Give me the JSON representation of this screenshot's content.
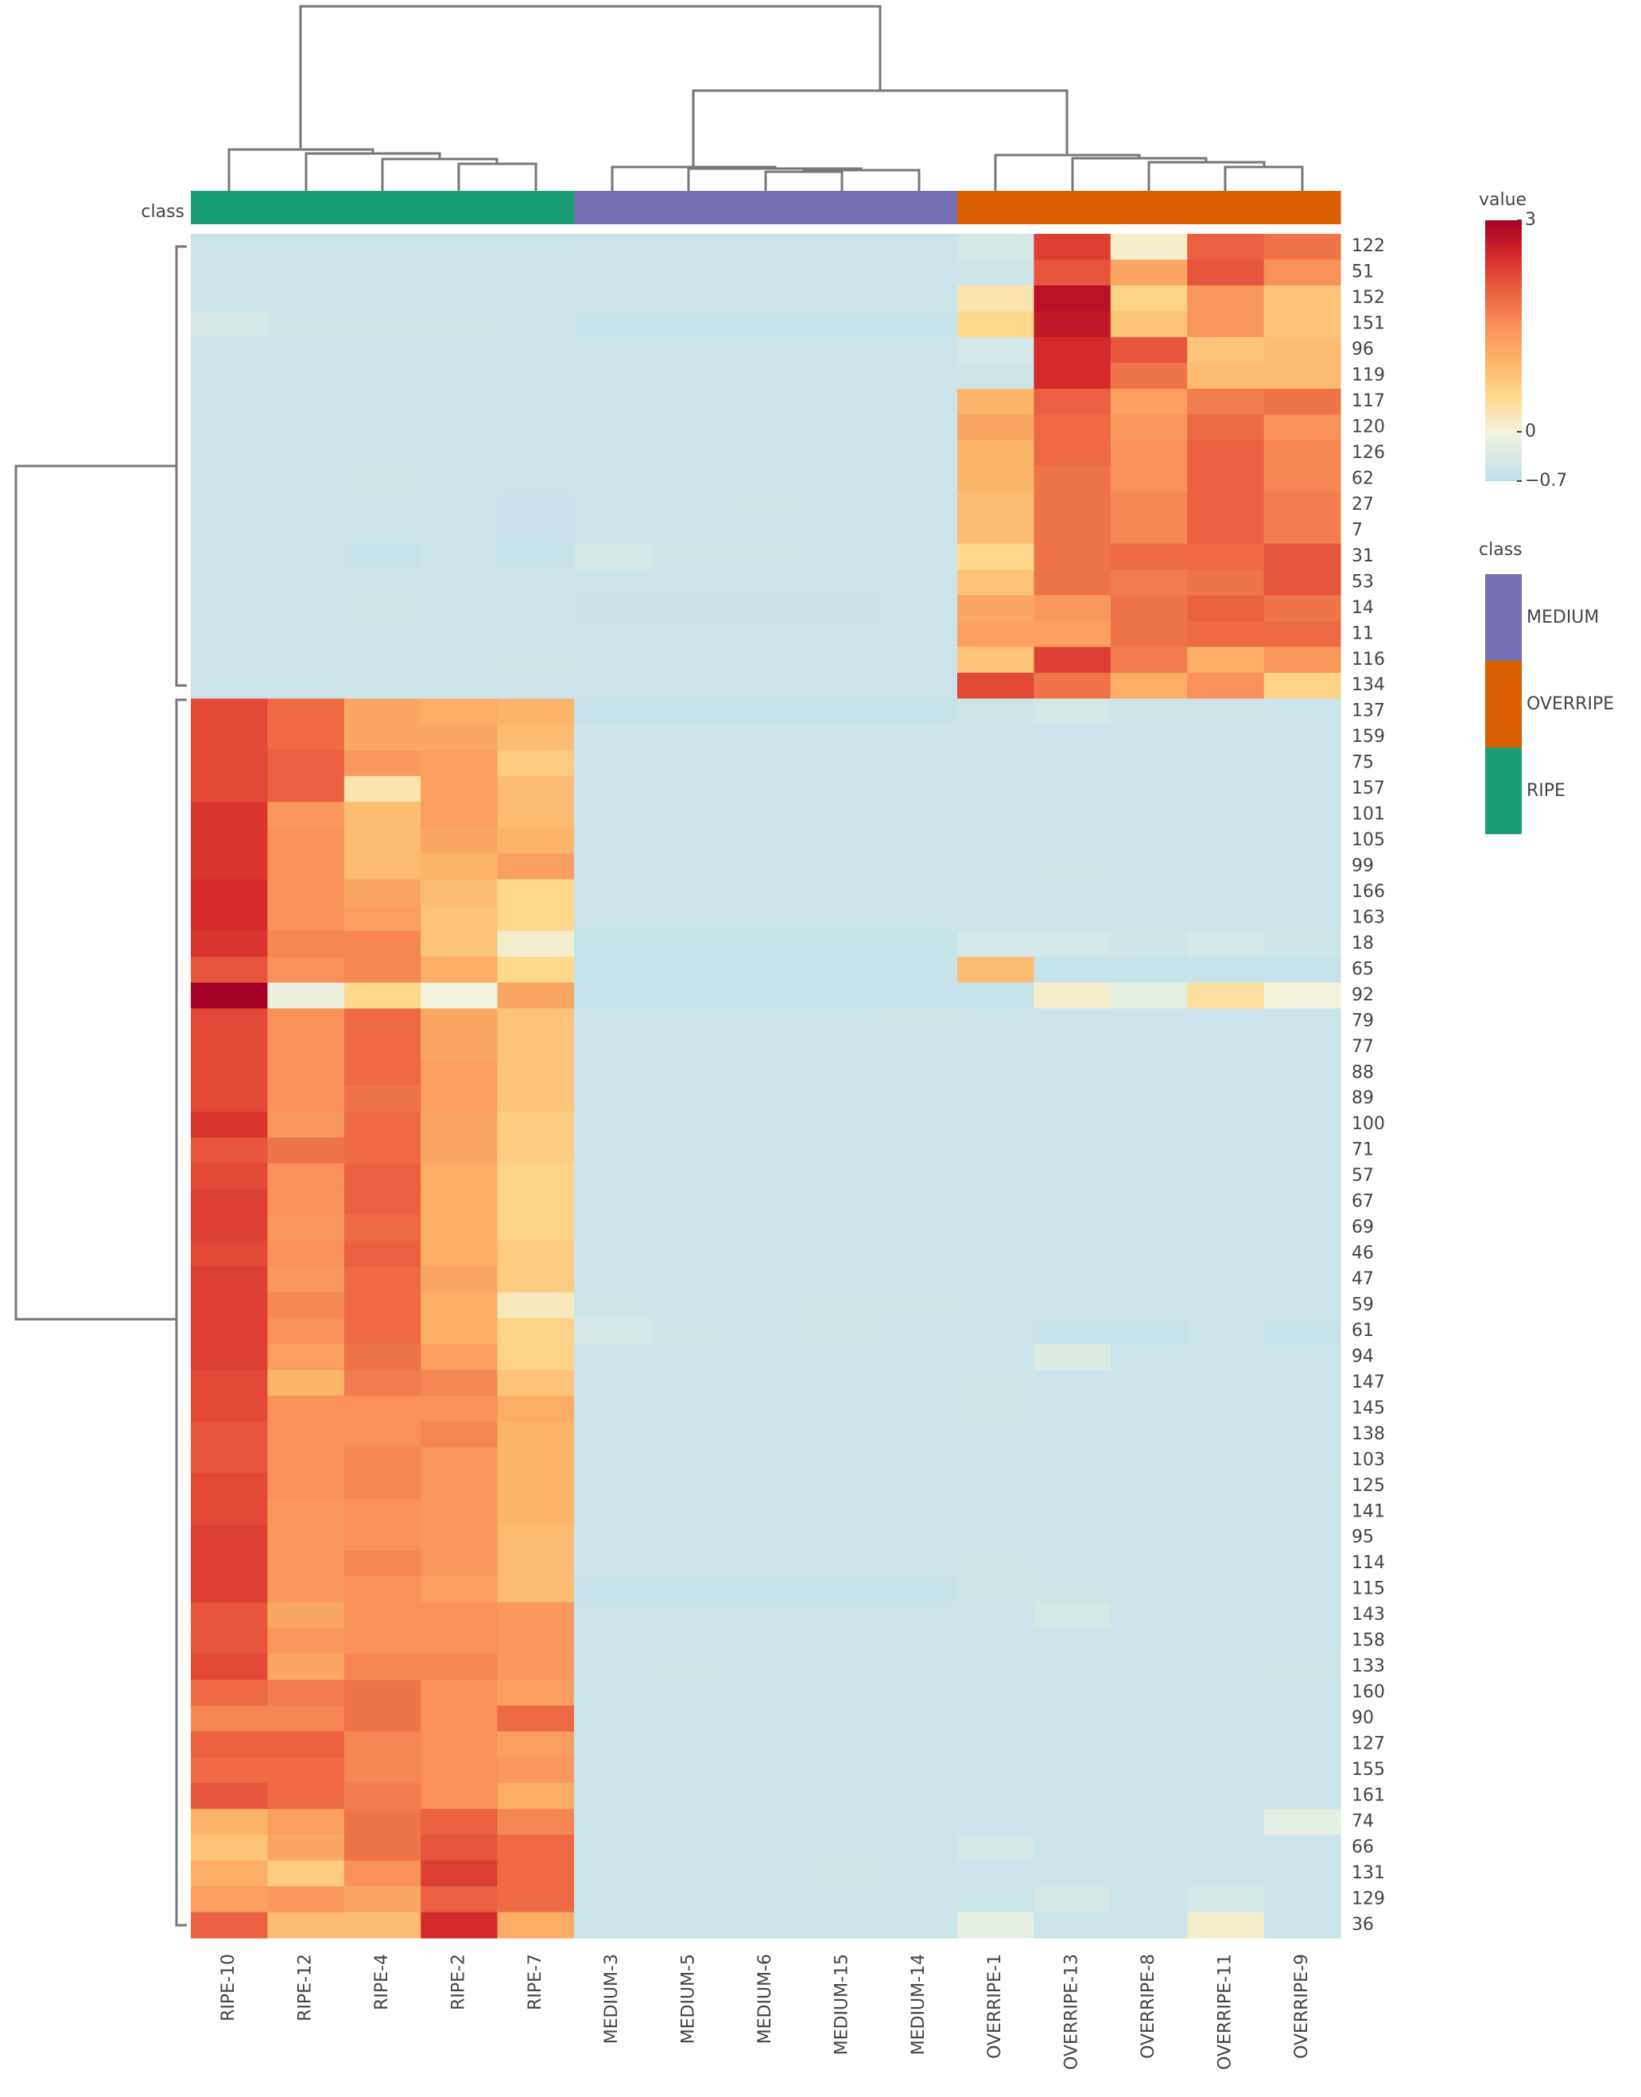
{
  "chart_data": {
    "type": "heatmap",
    "annotation_label": "class",
    "columns": [
      "RIPE-10",
      "RIPE-12",
      "RIPE-4",
      "RIPE-2",
      "RIPE-7",
      "MEDIUM-3",
      "MEDIUM-5",
      "MEDIUM-6",
      "MEDIUM-15",
      "MEDIUM-14",
      "OVERRIPE-1",
      "OVERRIPE-13",
      "OVERRIPE-8",
      "OVERRIPE-11",
      "OVERRIPE-9"
    ],
    "rows": [
      "122",
      "51",
      "152",
      "151",
      "96",
      "119",
      "117",
      "120",
      "126",
      "62",
      "27",
      "7",
      "31",
      "53",
      "14",
      "11",
      "116",
      "134",
      "137",
      "159",
      "75",
      "157",
      "101",
      "105",
      "99",
      "166",
      "163",
      "18",
      "65",
      "92",
      "79",
      "77",
      "88",
      "89",
      "100",
      "71",
      "57",
      "67",
      "69",
      "46",
      "47",
      "59",
      "61",
      "94",
      "147",
      "145",
      "138",
      "103",
      "125",
      "141",
      "95",
      "114",
      "115",
      "143",
      "158",
      "133",
      "160",
      "90",
      "127",
      "155",
      "161",
      "74",
      "66",
      "131",
      "129",
      "36"
    ],
    "values": [
      [
        -0.55,
        -0.55,
        -0.55,
        -0.55,
        -0.55,
        -0.55,
        -0.55,
        -0.55,
        -0.55,
        -0.55,
        -0.45,
        2.3,
        0.1,
        2.0,
        1.8
      ],
      [
        -0.55,
        -0.55,
        -0.55,
        -0.55,
        -0.55,
        -0.55,
        -0.55,
        -0.55,
        -0.55,
        -0.55,
        -0.5,
        2.1,
        1.2,
        2.1,
        1.5
      ],
      [
        -0.55,
        -0.55,
        -0.55,
        -0.55,
        -0.55,
        -0.55,
        -0.55,
        -0.55,
        -0.55,
        -0.55,
        0.3,
        2.8,
        0.6,
        1.4,
        0.8
      ],
      [
        -0.45,
        -0.5,
        -0.5,
        -0.5,
        -0.55,
        -0.6,
        -0.6,
        -0.6,
        -0.6,
        -0.6,
        0.5,
        2.7,
        0.8,
        1.4,
        0.8
      ],
      [
        -0.55,
        -0.55,
        -0.55,
        -0.55,
        -0.55,
        -0.55,
        -0.55,
        -0.55,
        -0.55,
        -0.55,
        -0.45,
        2.5,
        2.1,
        0.8,
        0.9
      ],
      [
        -0.55,
        -0.55,
        -0.55,
        -0.55,
        -0.55,
        -0.55,
        -0.55,
        -0.55,
        -0.55,
        -0.55,
        -0.5,
        2.5,
        1.8,
        0.9,
        0.9
      ],
      [
        -0.55,
        -0.55,
        -0.55,
        -0.55,
        -0.55,
        -0.55,
        -0.55,
        -0.55,
        -0.55,
        -0.55,
        1.0,
        2.0,
        1.3,
        1.7,
        1.8
      ],
      [
        -0.55,
        -0.55,
        -0.55,
        -0.55,
        -0.55,
        -0.55,
        -0.55,
        -0.55,
        -0.55,
        -0.55,
        1.2,
        1.9,
        1.4,
        1.9,
        1.5
      ],
      [
        -0.55,
        -0.55,
        -0.55,
        -0.55,
        -0.55,
        -0.55,
        -0.55,
        -0.55,
        -0.55,
        -0.55,
        1.0,
        1.9,
        1.5,
        2.0,
        1.6
      ],
      [
        -0.55,
        -0.55,
        -0.5,
        -0.55,
        -0.55,
        -0.55,
        -0.55,
        -0.55,
        -0.55,
        -0.55,
        1.0,
        1.8,
        1.5,
        2.0,
        1.6
      ],
      [
        -0.55,
        -0.55,
        -0.55,
        -0.55,
        -0.58,
        -0.55,
        -0.55,
        -0.5,
        -0.55,
        -0.55,
        0.9,
        1.8,
        1.6,
        2.0,
        1.7
      ],
      [
        -0.55,
        -0.55,
        -0.55,
        -0.55,
        -0.58,
        -0.55,
        -0.55,
        -0.55,
        -0.55,
        -0.55,
        0.9,
        1.8,
        1.6,
        2.0,
        1.7
      ],
      [
        -0.55,
        -0.55,
        -0.6,
        -0.55,
        -0.6,
        -0.45,
        -0.5,
        -0.5,
        -0.55,
        -0.55,
        0.5,
        1.8,
        1.9,
        1.9,
        2.1
      ],
      [
        -0.55,
        -0.55,
        -0.55,
        -0.55,
        -0.55,
        -0.55,
        -0.55,
        -0.55,
        -0.55,
        -0.55,
        0.8,
        1.8,
        1.7,
        1.8,
        2.1
      ],
      [
        -0.55,
        -0.55,
        -0.5,
        -0.55,
        -0.55,
        -0.58,
        -0.58,
        -0.58,
        -0.58,
        -0.55,
        1.2,
        1.4,
        1.8,
        2.0,
        1.8
      ],
      [
        -0.55,
        -0.55,
        -0.55,
        -0.55,
        -0.55,
        -0.55,
        -0.55,
        -0.55,
        -0.55,
        -0.55,
        1.3,
        1.3,
        1.8,
        1.9,
        1.9
      ],
      [
        -0.55,
        -0.55,
        -0.55,
        -0.55,
        -0.5,
        -0.55,
        -0.55,
        -0.55,
        -0.55,
        -0.55,
        0.8,
        2.3,
        1.7,
        1.1,
        1.4
      ],
      [
        -0.55,
        -0.55,
        -0.55,
        -0.55,
        -0.55,
        -0.55,
        -0.55,
        -0.55,
        -0.55,
        -0.55,
        2.2,
        1.8,
        1.1,
        1.5,
        0.6
      ],
      [
        2.2,
        1.9,
        1.2,
        1.1,
        1.0,
        -0.6,
        -0.6,
        -0.6,
        -0.6,
        -0.6,
        -0.5,
        -0.45,
        -0.5,
        -0.5,
        -0.55
      ],
      [
        2.2,
        1.9,
        1.2,
        1.2,
        0.9,
        -0.55,
        -0.55,
        -0.55,
        -0.55,
        -0.55,
        -0.55,
        -0.55,
        -0.55,
        -0.55,
        -0.55
      ],
      [
        2.2,
        2.0,
        1.4,
        1.3,
        0.7,
        -0.55,
        -0.55,
        -0.55,
        -0.55,
        -0.55,
        -0.55,
        -0.55,
        -0.55,
        -0.55,
        -0.55
      ],
      [
        2.2,
        2.0,
        0.3,
        1.3,
        0.9,
        -0.55,
        -0.55,
        -0.55,
        -0.55,
        -0.55,
        -0.55,
        -0.55,
        -0.55,
        -0.55,
        -0.55
      ],
      [
        2.4,
        1.4,
        0.9,
        1.3,
        0.9,
        -0.55,
        -0.55,
        -0.55,
        -0.55,
        -0.55,
        -0.55,
        -0.55,
        -0.55,
        -0.55,
        -0.55
      ],
      [
        2.4,
        1.5,
        0.9,
        1.2,
        1.0,
        -0.55,
        -0.55,
        -0.55,
        -0.55,
        -0.55,
        -0.55,
        -0.55,
        -0.55,
        -0.55,
        -0.55
      ],
      [
        2.4,
        1.5,
        0.9,
        1.0,
        1.3,
        -0.55,
        -0.55,
        -0.55,
        -0.55,
        -0.55,
        -0.55,
        -0.5,
        -0.55,
        -0.55,
        -0.55
      ],
      [
        2.5,
        1.5,
        1.2,
        0.9,
        0.5,
        -0.55,
        -0.55,
        -0.55,
        -0.55,
        -0.55,
        -0.55,
        -0.55,
        -0.55,
        -0.55,
        -0.55
      ],
      [
        2.5,
        1.5,
        1.3,
        0.8,
        0.5,
        -0.55,
        -0.55,
        -0.55,
        -0.55,
        -0.55,
        -0.55,
        -0.55,
        -0.55,
        -0.55,
        -0.55
      ],
      [
        2.4,
        1.6,
        1.6,
        0.8,
        0.1,
        -0.6,
        -0.6,
        -0.6,
        -0.6,
        -0.6,
        -0.45,
        -0.45,
        -0.5,
        -0.45,
        -0.5
      ],
      [
        2.1,
        1.5,
        1.6,
        1.1,
        0.5,
        -0.6,
        -0.6,
        -0.6,
        -0.6,
        -0.6,
        0.9,
        -0.6,
        -0.6,
        -0.6,
        -0.6
      ],
      [
        3.0,
        -0.1,
        0.5,
        0.0,
        1.2,
        -0.6,
        -0.6,
        -0.6,
        -0.6,
        -0.6,
        -0.6,
        0.1,
        -0.2,
        0.4,
        0.0
      ],
      [
        2.2,
        1.5,
        1.9,
        1.2,
        0.8,
        -0.55,
        -0.55,
        -0.55,
        -0.55,
        -0.5,
        -0.55,
        -0.55,
        -0.55,
        -0.55,
        -0.55
      ],
      [
        2.2,
        1.5,
        1.9,
        1.2,
        0.8,
        -0.55,
        -0.55,
        -0.55,
        -0.55,
        -0.55,
        -0.55,
        -0.55,
        -0.55,
        -0.55,
        -0.55
      ],
      [
        2.2,
        1.5,
        1.9,
        1.3,
        0.8,
        -0.55,
        -0.55,
        -0.55,
        -0.55,
        -0.55,
        -0.55,
        -0.55,
        -0.55,
        -0.55,
        -0.55
      ],
      [
        2.2,
        1.5,
        1.8,
        1.3,
        0.8,
        -0.55,
        -0.55,
        -0.55,
        -0.55,
        -0.55,
        -0.55,
        -0.55,
        -0.55,
        -0.55,
        -0.55
      ],
      [
        2.4,
        1.4,
        1.9,
        1.2,
        0.7,
        -0.55,
        -0.55,
        -0.55,
        -0.55,
        -0.55,
        -0.55,
        -0.55,
        -0.55,
        -0.55,
        -0.55
      ],
      [
        2.1,
        1.8,
        1.9,
        1.2,
        0.7,
        -0.55,
        -0.55,
        -0.55,
        -0.55,
        -0.55,
        -0.55,
        -0.55,
        -0.55,
        -0.55,
        -0.55
      ],
      [
        2.2,
        1.5,
        2.0,
        1.1,
        0.6,
        -0.55,
        -0.55,
        -0.55,
        -0.55,
        -0.55,
        -0.55,
        -0.55,
        -0.55,
        -0.55,
        -0.55
      ],
      [
        2.3,
        1.5,
        2.0,
        1.1,
        0.6,
        -0.55,
        -0.55,
        -0.55,
        -0.55,
        -0.55,
        -0.55,
        -0.55,
        -0.55,
        -0.55,
        -0.55
      ],
      [
        2.3,
        1.4,
        1.9,
        1.1,
        0.6,
        -0.55,
        -0.55,
        -0.55,
        -0.55,
        -0.55,
        -0.55,
        -0.55,
        -0.55,
        -0.55,
        -0.55
      ],
      [
        2.2,
        1.5,
        2.0,
        1.1,
        0.7,
        -0.55,
        -0.55,
        -0.55,
        -0.55,
        -0.55,
        -0.55,
        -0.55,
        -0.55,
        -0.55,
        -0.55
      ],
      [
        2.3,
        1.4,
        1.9,
        1.2,
        0.7,
        -0.55,
        -0.55,
        -0.55,
        -0.55,
        -0.55,
        -0.55,
        -0.55,
        -0.55,
        -0.55,
        -0.55
      ],
      [
        2.3,
        1.6,
        1.9,
        1.1,
        0.2,
        -0.5,
        -0.55,
        -0.55,
        -0.5,
        -0.5,
        -0.55,
        -0.55,
        -0.55,
        -0.55,
        -0.55
      ],
      [
        2.3,
        1.5,
        1.9,
        1.1,
        0.6,
        -0.45,
        -0.5,
        -0.55,
        -0.5,
        -0.55,
        -0.55,
        -0.6,
        -0.6,
        -0.55,
        -0.6
      ],
      [
        2.3,
        1.3,
        1.8,
        1.3,
        0.6,
        -0.55,
        -0.55,
        -0.55,
        -0.55,
        -0.55,
        -0.55,
        -0.3,
        -0.55,
        -0.55,
        -0.55
      ],
      [
        2.2,
        1.0,
        1.7,
        1.6,
        0.8,
        -0.55,
        -0.55,
        -0.55,
        -0.55,
        -0.55,
        -0.5,
        -0.55,
        -0.55,
        -0.55,
        -0.55
      ],
      [
        2.2,
        1.5,
        1.5,
        1.5,
        1.1,
        -0.55,
        -0.55,
        -0.55,
        -0.55,
        -0.55,
        -0.5,
        -0.55,
        -0.55,
        -0.55,
        -0.55
      ],
      [
        2.1,
        1.5,
        1.5,
        1.6,
        1.0,
        -0.55,
        -0.55,
        -0.55,
        -0.55,
        -0.55,
        -0.55,
        -0.55,
        -0.55,
        -0.55,
        -0.55
      ],
      [
        2.1,
        1.5,
        1.6,
        1.4,
        1.0,
        -0.55,
        -0.55,
        -0.55,
        -0.55,
        -0.55,
        -0.55,
        -0.55,
        -0.55,
        -0.55,
        -0.55
      ],
      [
        2.2,
        1.5,
        1.6,
        1.4,
        1.0,
        -0.55,
        -0.55,
        -0.55,
        -0.55,
        -0.55,
        -0.55,
        -0.55,
        -0.55,
        -0.55,
        -0.55
      ],
      [
        2.2,
        1.4,
        1.5,
        1.4,
        1.0,
        -0.55,
        -0.55,
        -0.55,
        -0.55,
        -0.55,
        -0.55,
        -0.55,
        -0.55,
        -0.55,
        -0.55
      ],
      [
        2.3,
        1.4,
        1.5,
        1.4,
        0.9,
        -0.55,
        -0.55,
        -0.55,
        -0.55,
        -0.55,
        -0.55,
        -0.55,
        -0.55,
        -0.55,
        -0.55
      ],
      [
        2.3,
        1.4,
        1.6,
        1.4,
        0.9,
        -0.55,
        -0.55,
        -0.55,
        -0.55,
        -0.55,
        -0.5,
        -0.55,
        -0.55,
        -0.55,
        -0.55
      ],
      [
        2.3,
        1.4,
        1.5,
        1.3,
        0.9,
        -0.6,
        -0.6,
        -0.6,
        -0.6,
        -0.6,
        -0.5,
        -0.5,
        -0.55,
        -0.55,
        -0.55
      ],
      [
        2.1,
        1.2,
        1.5,
        1.5,
        1.4,
        -0.55,
        -0.55,
        -0.55,
        -0.55,
        -0.55,
        -0.55,
        -0.45,
        -0.55,
        -0.55,
        -0.55
      ],
      [
        2.1,
        1.4,
        1.5,
        1.5,
        1.4,
        -0.55,
        -0.55,
        -0.55,
        -0.55,
        -0.55,
        -0.55,
        -0.55,
        -0.55,
        -0.55,
        -0.55
      ],
      [
        2.2,
        1.2,
        1.6,
        1.6,
        1.4,
        -0.55,
        -0.5,
        -0.55,
        -0.55,
        -0.55,
        -0.55,
        -0.55,
        -0.55,
        -0.55,
        -0.5
      ],
      [
        1.9,
        1.7,
        1.8,
        1.5,
        1.3,
        -0.55,
        -0.55,
        -0.55,
        -0.55,
        -0.55,
        -0.55,
        -0.55,
        -0.55,
        -0.55,
        -0.55
      ],
      [
        1.6,
        1.6,
        1.8,
        1.5,
        1.9,
        -0.55,
        -0.55,
        -0.55,
        -0.55,
        -0.55,
        -0.55,
        -0.55,
        -0.55,
        -0.55,
        -0.55
      ],
      [
        2.0,
        2.0,
        1.6,
        1.5,
        1.3,
        -0.55,
        -0.55,
        -0.55,
        -0.55,
        -0.55,
        -0.55,
        -0.55,
        -0.55,
        -0.55,
        -0.55
      ],
      [
        1.9,
        1.9,
        1.6,
        1.5,
        1.4,
        -0.55,
        -0.55,
        -0.55,
        -0.55,
        -0.55,
        -0.55,
        -0.55,
        -0.55,
        -0.55,
        -0.55
      ],
      [
        2.1,
        1.9,
        1.7,
        1.5,
        1.1,
        -0.55,
        -0.55,
        -0.55,
        -0.55,
        -0.55,
        -0.55,
        -0.55,
        -0.55,
        -0.55,
        -0.55
      ],
      [
        1.0,
        1.3,
        1.8,
        2.0,
        1.6,
        -0.55,
        -0.55,
        -0.55,
        -0.55,
        -0.55,
        -0.55,
        -0.55,
        -0.55,
        -0.55,
        -0.2
      ],
      [
        0.8,
        1.2,
        1.8,
        2.1,
        1.9,
        -0.55,
        -0.55,
        -0.55,
        -0.55,
        -0.55,
        -0.45,
        -0.55,
        -0.55,
        -0.55,
        -0.55
      ],
      [
        1.1,
        0.7,
        1.5,
        2.3,
        1.9,
        -0.55,
        -0.55,
        -0.55,
        -0.5,
        -0.55,
        -0.55,
        -0.55,
        -0.55,
        -0.55,
        -0.55
      ],
      [
        1.3,
        1.4,
        1.2,
        2.0,
        1.9,
        -0.55,
        -0.55,
        -0.55,
        -0.55,
        -0.55,
        -0.55,
        -0.45,
        -0.55,
        -0.45,
        -0.55
      ],
      [
        2.0,
        0.9,
        0.9,
        2.5,
        1.1,
        -0.55,
        -0.55,
        -0.55,
        -0.55,
        -0.55,
        -0.2,
        -0.55,
        -0.55,
        0.1,
        -0.55
      ]
    ],
    "legend_title": "value",
    "clim": [
      -0.7,
      3
    ],
    "cticks": [
      3,
      0,
      {
        "value": -0.7,
        "label": "−0.7"
      }
    ],
    "colorscale": [
      [
        -0.7,
        "#bfe0ec"
      ],
      [
        0,
        "#f3f3dc"
      ],
      [
        0.5,
        "#fed98e"
      ],
      [
        1,
        "#fdb56a"
      ],
      [
        1.5,
        "#f8915a"
      ],
      [
        2,
        "#ea6040"
      ],
      [
        2.5,
        "#d52a2a"
      ],
      [
        3,
        "#a50026"
      ]
    ],
    "class_legend_title": "class",
    "classes": [
      {
        "name": "MEDIUM",
        "color": "#7570b3"
      },
      {
        "name": "OVERRIPE",
        "color": "#d95f02"
      },
      {
        "name": "RIPE",
        "color": "#1b9e77"
      }
    ]
  }
}
